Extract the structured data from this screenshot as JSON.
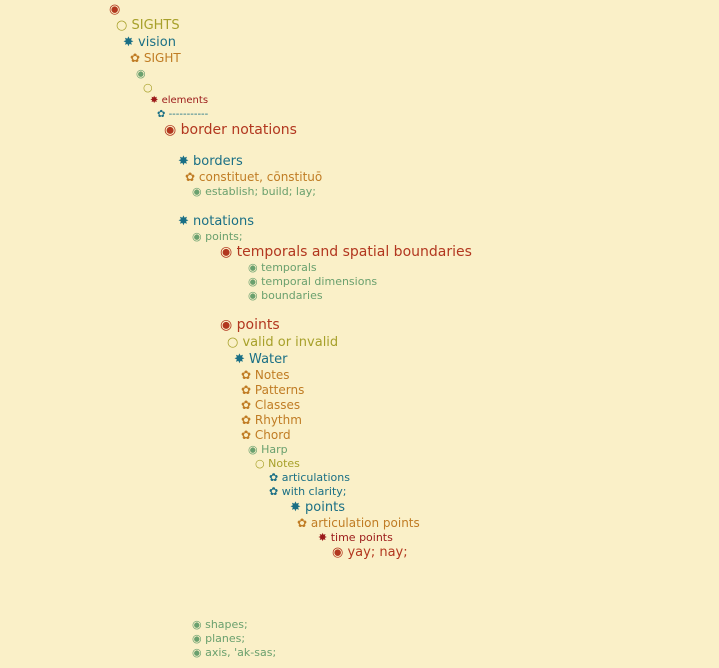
{
  "icons": {
    "root": "◉",
    "circle": "○",
    "star": "✸",
    "flower": "✿",
    "dot": "◉",
    "elements": "✸"
  },
  "tree": {
    "root": "",
    "sights": "SIGHTS",
    "vision": "vision",
    "sight": "SIGHT",
    "blank1": "",
    "blank2": "",
    "elements": "elements",
    "dashes": "-----------",
    "border_notations": "border notations",
    "borders": "borders",
    "constituet": "constituet, cōnstituō",
    "establish": "establish; build; lay;",
    "notations": "notations",
    "points_semicolon": "points;",
    "temporals_spatial": "temporals and spatial boundaries",
    "temporals": "temporals",
    "temporal_dimensions": "temporal dimensions",
    "boundaries": "boundaries",
    "points": "points",
    "valid_invalid": "valid or invalid",
    "water": "Water",
    "notes": "Notes",
    "patterns": "Patterns",
    "classes": "Classes",
    "rhythm": "Rhythm",
    "chord": "Chord",
    "harp": "Harp",
    "notes2": "Notes",
    "articulations": "articulations",
    "with_clarity": "with clarity;",
    "points2": "points",
    "articulation_points": "articulation points",
    "time_points": "time points",
    "yay_nay": "yay; nay;",
    "shapes": "shapes;",
    "planes": "planes;",
    "axis": "axis, 'ak-sas;"
  }
}
